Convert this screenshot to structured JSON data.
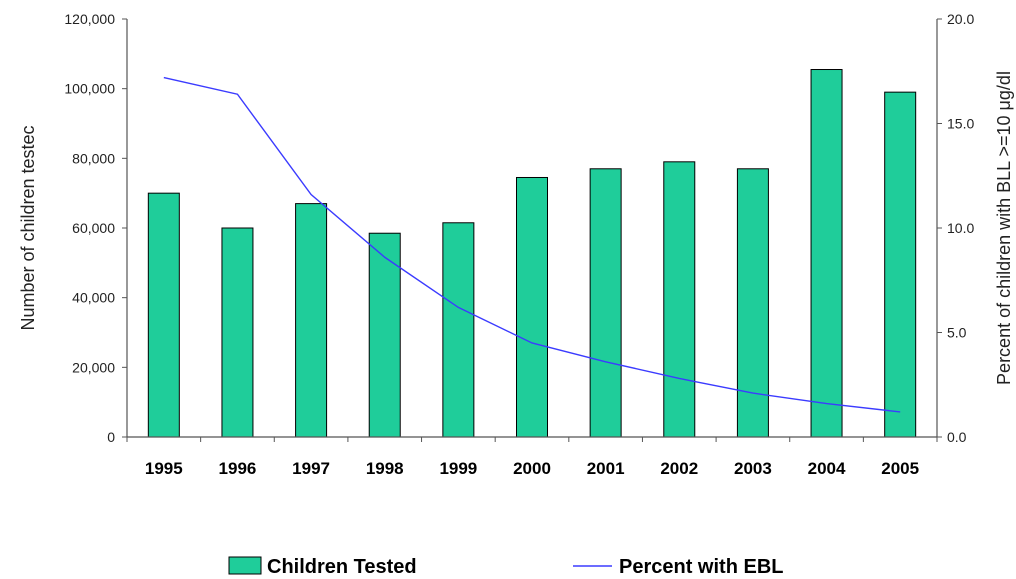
{
  "chart_data": {
    "type": "bar",
    "categories": [
      "1995",
      "1996",
      "1997",
      "1998",
      "1999",
      "2000",
      "2001",
      "2002",
      "2003",
      "2004",
      "2005"
    ],
    "series": [
      {
        "name": "Children Tested",
        "kind": "bar",
        "axis": "left",
        "color": "#1fcd9a",
        "values": [
          70000,
          60000,
          67000,
          58500,
          61500,
          74500,
          77000,
          79000,
          77000,
          105500,
          99000
        ]
      },
      {
        "name": "Percent with EBL",
        "kind": "line",
        "axis": "right",
        "color": "#3b3bff",
        "values": [
          17.2,
          16.4,
          11.6,
          8.6,
          6.2,
          4.5,
          3.6,
          2.8,
          2.1,
          1.6,
          1.2
        ]
      }
    ],
    "ylabel": "Number of children testec",
    "y2label": "Percent of children with BLL >=10 μg/dl",
    "ylim": [
      0,
      120000
    ],
    "y2lim": [
      0,
      20
    ],
    "yticks": [
      "0",
      "20,000",
      "40,000",
      "60,000",
      "80,000",
      "100,000",
      "120,000"
    ],
    "y2ticks": [
      "0.0",
      "5.0",
      "10.0",
      "15.0",
      "20.0"
    ],
    "grid": false,
    "legend_position": "bottom"
  }
}
